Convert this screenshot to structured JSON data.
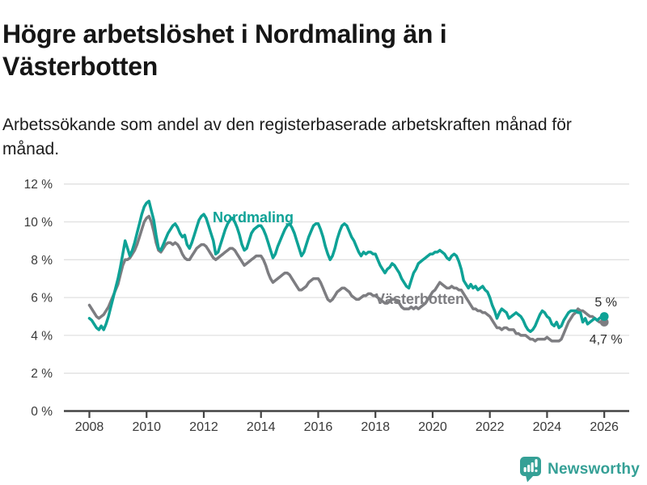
{
  "header": {
    "title": "Högre arbetslöshet i Nordmaling än i Västerbotten",
    "subtitle": "Arbetssökande som andel av den registerbaserade arbetskraften månad för månad."
  },
  "footer": {
    "brand": "Newsworthy",
    "icon": "newsworthy-bar-chart-bubble-icon"
  },
  "colors": {
    "nordmaling": "#0ea296",
    "vasterbotten": "#7d7d81",
    "grid": "#e0e0e0",
    "axis": "#434343",
    "tick_label": "#393939",
    "annotation": "#2d2d2d",
    "logo": "#35a096",
    "background": "#ffffff"
  },
  "chart_data": {
    "type": "line",
    "title": "Högre arbetslöshet i Nordmaling än i Västerbotten",
    "subtitle": "Arbetssökande som andel av den registerbaserade arbetskraften månad för månad.",
    "x_unit": "month",
    "x_start_year": 2008,
    "x_end_year": 2026,
    "xticks": [
      2008,
      2010,
      2012,
      2014,
      2016,
      2018,
      2020,
      2022,
      2024,
      2026
    ],
    "yticks": [
      {
        "v": 0,
        "label": "0 %"
      },
      {
        "v": 2,
        "label": "2 %"
      },
      {
        "v": 4,
        "label": "4 %"
      },
      {
        "v": 6,
        "label": "6 %"
      },
      {
        "v": 8,
        "label": "8 %"
      },
      {
        "v": 10,
        "label": "10 %"
      },
      {
        "v": 12,
        "label": "12 %"
      }
    ],
    "ylim": [
      0,
      12
    ],
    "grid": true,
    "legend": "inline-labels",
    "series": [
      {
        "name": "Nordmaling",
        "color": "#0ea296",
        "end_label": "5 %",
        "end_value": 5.0,
        "values": [
          4.9,
          4.8,
          4.6,
          4.4,
          4.3,
          4.5,
          4.3,
          4.6,
          5.0,
          5.5,
          6.0,
          6.5,
          7.0,
          7.6,
          8.3,
          9.0,
          8.6,
          8.2,
          8.5,
          8.9,
          9.4,
          9.9,
          10.4,
          10.8,
          11.0,
          11.1,
          10.6,
          10.1,
          9.3,
          8.6,
          8.5,
          8.8,
          9.1,
          9.4,
          9.6,
          9.8,
          9.9,
          9.7,
          9.4,
          9.2,
          9.3,
          8.8,
          8.6,
          8.9,
          9.3,
          9.7,
          10.1,
          10.3,
          10.4,
          10.2,
          9.8,
          9.4,
          9.0,
          8.3,
          8.4,
          8.8,
          9.2,
          9.6,
          9.9,
          10.1,
          10.2,
          10.0,
          9.7,
          9.3,
          8.8,
          8.5,
          8.6,
          9.0,
          9.4,
          9.6,
          9.7,
          9.8,
          9.8,
          9.6,
          9.3,
          8.9,
          8.5,
          8.1,
          8.3,
          8.7,
          9.0,
          9.3,
          9.6,
          9.8,
          9.9,
          9.7,
          9.4,
          9.0,
          8.6,
          8.2,
          8.4,
          8.8,
          9.2,
          9.5,
          9.8,
          9.9,
          9.9,
          9.6,
          9.2,
          8.7,
          8.3,
          8.0,
          8.2,
          8.6,
          9.1,
          9.5,
          9.8,
          9.9,
          9.8,
          9.5,
          9.2,
          9.0,
          8.7,
          8.4,
          8.2,
          8.4,
          8.3,
          8.4,
          8.4,
          8.3,
          8.3,
          8.0,
          7.7,
          7.5,
          7.3,
          7.5,
          7.6,
          7.8,
          7.7,
          7.5,
          7.3,
          7.0,
          6.8,
          6.6,
          6.5,
          6.9,
          7.3,
          7.5,
          7.8,
          7.9,
          8.0,
          8.1,
          8.2,
          8.3,
          8.3,
          8.4,
          8.4,
          8.5,
          8.4,
          8.3,
          8.1,
          8.0,
          8.2,
          8.3,
          8.2,
          7.9,
          7.5,
          6.9,
          6.7,
          6.5,
          6.7,
          6.5,
          6.6,
          6.4,
          6.5,
          6.6,
          6.4,
          6.3,
          6.0,
          5.6,
          5.3,
          4.9,
          5.2,
          5.4,
          5.3,
          5.2,
          4.9,
          5.0,
          5.1,
          5.2,
          5.1,
          5.0,
          4.8,
          4.5,
          4.3,
          4.2,
          4.3,
          4.5,
          4.8,
          5.1,
          5.3,
          5.2,
          5.0,
          4.9,
          4.6,
          4.5,
          4.7,
          4.4,
          4.5,
          4.8,
          5.0,
          5.2,
          5.3,
          5.3,
          5.3,
          5.2,
          5.2,
          4.7,
          4.9,
          4.6,
          4.7,
          4.8,
          4.9,
          4.8,
          4.9,
          5.0,
          5.0
        ]
      },
      {
        "name": "Västerbotten",
        "color": "#7d7d81",
        "end_label": "4,7 %",
        "end_value": 4.7,
        "values": [
          5.6,
          5.4,
          5.2,
          5.0,
          4.9,
          5.0,
          5.1,
          5.3,
          5.5,
          5.8,
          6.1,
          6.4,
          6.7,
          7.2,
          7.7,
          8.0,
          8.0,
          8.1,
          8.3,
          8.5,
          8.8,
          9.2,
          9.6,
          10.0,
          10.2,
          10.3,
          10.0,
          9.5,
          8.9,
          8.5,
          8.4,
          8.6,
          8.8,
          8.9,
          8.9,
          8.8,
          8.9,
          8.8,
          8.6,
          8.3,
          8.1,
          8.0,
          8.0,
          8.2,
          8.4,
          8.6,
          8.7,
          8.8,
          8.8,
          8.7,
          8.5,
          8.3,
          8.1,
          8.0,
          8.1,
          8.2,
          8.3,
          8.4,
          8.5,
          8.6,
          8.6,
          8.5,
          8.3,
          8.1,
          7.9,
          7.7,
          7.8,
          7.9,
          8.0,
          8.1,
          8.2,
          8.2,
          8.2,
          8.0,
          7.7,
          7.3,
          7.0,
          6.8,
          6.9,
          7.0,
          7.1,
          7.2,
          7.3,
          7.3,
          7.2,
          7.0,
          6.8,
          6.6,
          6.4,
          6.4,
          6.5,
          6.6,
          6.8,
          6.9,
          7.0,
          7.0,
          7.0,
          6.8,
          6.5,
          6.2,
          5.9,
          5.8,
          5.9,
          6.1,
          6.3,
          6.4,
          6.5,
          6.5,
          6.4,
          6.3,
          6.1,
          6.0,
          5.9,
          5.9,
          6.0,
          6.1,
          6.1,
          6.2,
          6.2,
          6.1,
          6.1,
          6.0,
          5.9,
          5.8,
          5.7,
          5.7,
          5.8,
          5.9,
          5.9,
          5.8,
          5.7,
          5.5,
          5.4,
          5.4,
          5.4,
          5.5,
          5.4,
          5.5,
          5.4,
          5.5,
          5.6,
          5.7,
          5.9,
          6.1,
          6.3,
          6.4,
          6.6,
          6.8,
          6.7,
          6.6,
          6.5,
          6.5,
          6.6,
          6.5,
          6.5,
          6.4,
          6.4,
          6.2,
          6.0,
          5.8,
          5.6,
          5.4,
          5.4,
          5.3,
          5.3,
          5.2,
          5.2,
          5.1,
          5.0,
          4.8,
          4.6,
          4.4,
          4.4,
          4.3,
          4.4,
          4.4,
          4.3,
          4.3,
          4.3,
          4.1,
          4.1,
          4.0,
          4.0,
          4.0,
          3.9,
          3.8,
          3.8,
          3.7,
          3.8,
          3.8,
          3.8,
          3.8,
          3.9,
          3.8,
          3.7,
          3.7,
          3.7,
          3.7,
          3.8,
          4.1,
          4.4,
          4.7,
          4.9,
          5.1,
          5.2,
          5.4,
          5.3,
          5.3,
          5.2,
          5.1,
          5.0,
          5.0,
          4.9,
          4.8,
          4.7,
          4.7,
          4.7
        ]
      }
    ]
  }
}
